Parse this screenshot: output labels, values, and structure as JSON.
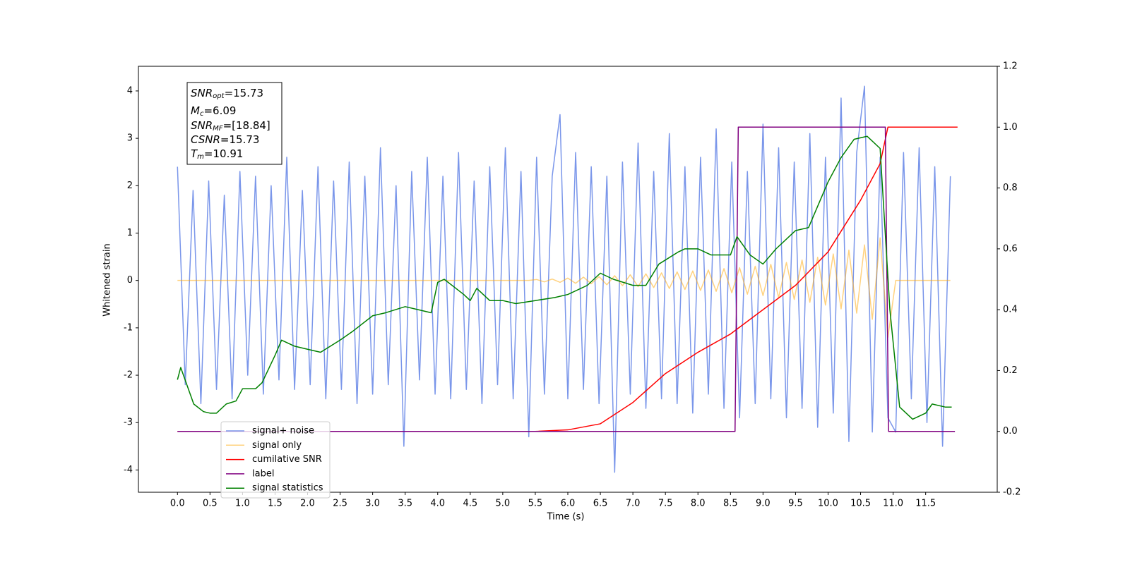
{
  "chart_data": {
    "type": "line",
    "xlabel": "Time (s)",
    "ylabel": "Whitened strain",
    "xlim": [
      -0.6,
      12.6
    ],
    "ylim": [
      -4.47,
      4.52
    ],
    "y2lim": [
      -0.2,
      1.2
    ],
    "xticks": [
      {
        "value": 0,
        "label": "0.0"
      },
      0.5,
      {
        "value": 1,
        "label": "1.0"
      },
      1.5,
      {
        "value": 2,
        "label": "2.0"
      },
      2.5,
      {
        "value": 3,
        "label": "3.0"
      },
      3.5,
      {
        "value": 4,
        "label": "4.0"
      },
      4.5,
      {
        "value": 5,
        "label": "5.0"
      },
      5.5,
      {
        "value": 6,
        "label": "6.0"
      },
      6.5,
      {
        "value": 7,
        "label": "7.0"
      },
      7.5,
      {
        "value": 8,
        "label": "8.0"
      },
      8.5,
      {
        "value": 9,
        "label": "9.0"
      },
      9.5,
      {
        "value": 10,
        "label": "10.0"
      },
      10.5,
      {
        "value": 11,
        "label": "11.0"
      },
      11.5
    ],
    "yticks": [
      -4,
      -3,
      -2,
      -1,
      0,
      1,
      2,
      3,
      4
    ],
    "y2ticks": [
      -0.2,
      {
        "value": 0,
        "label": "0.0"
      },
      0.2,
      0.4,
      0.6,
      0.8,
      {
        "value": 1,
        "label": "1.0"
      },
      1.2
    ],
    "annotations": [
      {
        "symbol": "SNR",
        "subscript": "opt",
        "text": "=15.73"
      },
      {
        "symbol": "M",
        "subscript": "c",
        "text": "=6.09"
      },
      {
        "symbol": "SNR",
        "subscript": "MF",
        "text": "=[18.84]"
      },
      {
        "symbol": "CSNR",
        "text": "=15.73"
      },
      {
        "symbol": "T",
        "subscript": "m",
        "text": "=10.91"
      }
    ],
    "x": [
      0,
      0.12,
      0.24,
      0.36,
      0.48,
      0.6,
      0.72,
      0.84,
      0.96,
      1.08,
      1.2,
      1.32,
      1.44,
      1.56,
      1.68,
      1.8,
      1.92,
      2.04,
      2.16,
      2.28,
      2.4,
      2.52,
      2.64,
      2.76,
      2.88,
      3,
      3.12,
      3.24,
      3.36,
      3.48,
      3.6,
      3.72,
      3.84,
      3.96,
      4.08,
      4.2,
      4.32,
      4.44,
      4.56,
      4.68,
      4.8,
      4.92,
      5.04,
      5.16,
      5.28,
      5.4,
      5.52,
      5.64,
      5.76,
      5.88,
      6,
      6.12,
      6.24,
      6.36,
      6.48,
      6.6,
      6.72,
      6.84,
      6.96,
      7.08,
      7.2,
      7.32,
      7.44,
      7.56,
      7.68,
      7.8,
      7.92,
      8.04,
      8.16,
      8.28,
      8.4,
      8.52,
      8.64,
      8.76,
      8.88,
      9,
      9.12,
      9.24,
      9.36,
      9.48,
      9.6,
      9.72,
      9.84,
      9.96,
      10.08,
      10.2,
      10.32,
      10.44,
      10.56,
      10.68,
      10.8,
      10.92,
      11.04,
      11.16,
      11.28,
      11.4,
      11.52,
      11.64,
      11.76,
      11.88
    ],
    "series": [
      {
        "name": "signal+ noise",
        "color": "#4169e1",
        "alpha": 0.7,
        "values": [
          2.4,
          -2.2,
          1.9,
          -2.6,
          2.1,
          -2.3,
          1.8,
          -2.5,
          2.3,
          -2.0,
          2.2,
          -2.4,
          2.0,
          -2.1,
          2.6,
          -2.3,
          1.9,
          -2.2,
          2.4,
          -2.5,
          2.1,
          -2.3,
          2.5,
          -2.6,
          2.2,
          -2.4,
          2.8,
          -2.2,
          2.0,
          -3.5,
          2.3,
          -2.1,
          2.6,
          -2.4,
          2.2,
          -2.5,
          2.7,
          -2.3,
          2.1,
          -2.6,
          2.4,
          -2.2,
          2.8,
          -2.5,
          2.3,
          -3.3,
          2.6,
          -2.4,
          2.2,
          3.5,
          -2.5,
          2.7,
          -2.3,
          2.4,
          -2.6,
          2.2,
          -4.05,
          2.5,
          -2.4,
          2.9,
          -2.7,
          2.3,
          -2.5,
          3.1,
          -2.6,
          2.4,
          -2.8,
          2.6,
          -2.4,
          3.2,
          -2.7,
          2.5,
          -2.9,
          2.3,
          -2.6,
          3.3,
          -2.5,
          2.8,
          -2.9,
          2.5,
          -2.7,
          3.1,
          -3.1,
          2.6,
          -2.8,
          3.85,
          -3.4,
          2.7,
          4.1,
          -3.2,
          2.6,
          -2.9,
          -3.2,
          2.7,
          -2.5,
          2.8,
          -3.0,
          2.4,
          -3.5,
          2.2
        ]
      },
      {
        "name": "signal only",
        "color": "#ffa500",
        "alpha": 0.5,
        "values": [
          0,
          0,
          0,
          0,
          0,
          0,
          0,
          0,
          0,
          0,
          0,
          0,
          0,
          0,
          0,
          0,
          0,
          0,
          0,
          0,
          0,
          0,
          0,
          0,
          0,
          0,
          0,
          0,
          0,
          0,
          0,
          0,
          0,
          0,
          0,
          0,
          0,
          0,
          0,
          0,
          0,
          0,
          0,
          0,
          0,
          0,
          0.02,
          -0.03,
          0.03,
          -0.04,
          0.05,
          -0.06,
          0.07,
          -0.07,
          0.08,
          -0.09,
          0.1,
          -0.11,
          0.12,
          -0.13,
          0.14,
          -0.15,
          0.16,
          -0.17,
          0.18,
          -0.19,
          0.2,
          -0.21,
          0.22,
          -0.23,
          0.25,
          -0.26,
          0.27,
          -0.29,
          0.3,
          -0.32,
          0.34,
          -0.36,
          0.38,
          -0.4,
          0.43,
          -0.46,
          0.49,
          -0.52,
          0.56,
          -0.6,
          0.64,
          -0.69,
          0.75,
          -0.82,
          0.9,
          -1.2,
          0,
          0,
          0,
          0,
          0,
          0,
          0,
          0
        ]
      },
      {
        "name": "cumilative SNR",
        "color": "#ff0000",
        "alpha": 1,
        "axis": "y2",
        "x": [
          0,
          5.5,
          6,
          6.5,
          7,
          7.5,
          8,
          8.5,
          9,
          9.5,
          10,
          10.5,
          10.8,
          10.92,
          11.99
        ],
        "values": [
          0,
          0,
          0.005,
          0.025,
          0.095,
          0.19,
          0.26,
          0.32,
          0.4,
          0.48,
          0.59,
          0.76,
          0.88,
          1,
          1
        ]
      },
      {
        "name": "label",
        "color": "#800080",
        "alpha": 1,
        "axis": "y2",
        "x": [
          0,
          8.57,
          8.62,
          10.88,
          10.93,
          11.95
        ],
        "values": [
          0,
          0,
          1,
          1,
          0,
          0
        ]
      },
      {
        "name": "signal statistics",
        "color": "#008000",
        "alpha": 1,
        "axis": "y2",
        "x": [
          0,
          0.05,
          0.15,
          0.25,
          0.4,
          0.5,
          0.6,
          0.75,
          0.9,
          1,
          1.2,
          1.3,
          1.5,
          1.6,
          1.8,
          2,
          2.2,
          2.5,
          2.7,
          3,
          3.2,
          3.5,
          3.7,
          3.9,
          4,
          4.1,
          4.4,
          4.5,
          4.6,
          4.8,
          5,
          5.2,
          5.5,
          5.8,
          6,
          6.3,
          6.5,
          6.7,
          7,
          7.2,
          7.4,
          7.7,
          7.8,
          8,
          8.2,
          8.5,
          8.6,
          8.8,
          9,
          9.2,
          9.5,
          9.7,
          10,
          10.2,
          10.4,
          10.6,
          10.8,
          10.95,
          11.1,
          11.3,
          11.5,
          11.6,
          11.8,
          11.9
        ],
        "values": [
          0.17,
          0.21,
          0.15,
          0.09,
          0.065,
          0.06,
          0.06,
          0.09,
          0.1,
          0.14,
          0.14,
          0.16,
          0.25,
          0.3,
          0.28,
          0.27,
          0.26,
          0.3,
          0.33,
          0.38,
          0.39,
          0.41,
          0.4,
          0.39,
          0.49,
          0.5,
          0.45,
          0.43,
          0.47,
          0.43,
          0.43,
          0.42,
          0.43,
          0.44,
          0.45,
          0.48,
          0.52,
          0.5,
          0.48,
          0.48,
          0.55,
          0.59,
          0.6,
          0.6,
          0.58,
          0.58,
          0.64,
          0.58,
          0.55,
          0.6,
          0.66,
          0.67,
          0.82,
          0.9,
          0.96,
          0.97,
          0.93,
          0.4,
          0.08,
          0.04,
          0.06,
          0.09,
          0.08,
          0.08
        ]
      }
    ]
  }
}
